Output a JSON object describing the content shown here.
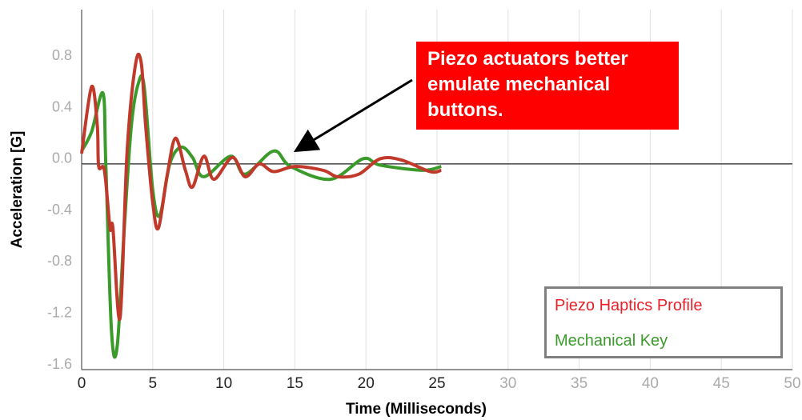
{
  "chart_data": {
    "type": "line",
    "annotation": "Piezo actuators better emulate mechanical buttons.",
    "xlabel": "Time (Milliseconds)",
    "ylabel": "Acceleration [G]",
    "xlim": [
      0,
      50
    ],
    "xticks": [
      0,
      5,
      10,
      15,
      20,
      25,
      30,
      35,
      40,
      45,
      50
    ],
    "ylim": [
      -1.6,
      1.2
    ],
    "yticks": [
      -1.6,
      -1.2,
      -0.8,
      -0.4,
      {
        "value": 0,
        "label": "0.0"
      },
      0.4,
      0.8
    ],
    "grid": true,
    "legend": "lower right",
    "series": [
      {
        "name": "Piezo Haptics Profile",
        "color": "#c0392b",
        "x": [
          0,
          0.7,
          1.1,
          1.2,
          1.6,
          2,
          2.2,
          2.7,
          3.2,
          3.8,
          4.2,
          4.5,
          5,
          5.4,
          6,
          6.6,
          7.3,
          7.8,
          8.6,
          9.3,
          10.6,
          11.5,
          12.5,
          13.5,
          15,
          17,
          18,
          19.5,
          21,
          22.5,
          24.5,
          25.3
        ],
        "values": [
          0.08,
          0.6,
          0.3,
          -0.02,
          -0.05,
          -0.5,
          -0.5,
          -1.2,
          0.1,
          0.78,
          0.78,
          0.3,
          -0.3,
          -0.5,
          -0.1,
          0.2,
          -0.05,
          -0.18,
          0.06,
          -0.12,
          0.05,
          -0.1,
          0.0,
          -0.06,
          -0.02,
          -0.05,
          -0.1,
          -0.08,
          0.04,
          0.03,
          -0.06,
          -0.05
        ]
      },
      {
        "name": "Mechanical Key",
        "color": "#3a9a2a",
        "x": [
          0,
          0.7,
          1.5,
          1.7,
          2.1,
          2.5,
          3,
          3.5,
          4,
          4.4,
          5,
          5.5,
          6.2,
          7,
          7.8,
          8.6,
          10.5,
          11.5,
          13.5,
          14.7,
          17.5,
          19.8,
          21,
          24,
          25.3
        ],
        "values": [
          0.1,
          0.25,
          0.55,
          0.0,
          -1.3,
          -1.42,
          -0.5,
          0.3,
          0.63,
          0.6,
          -0.2,
          -0.4,
          0.0,
          0.13,
          0.05,
          -0.1,
          0.06,
          -0.08,
          0.1,
          -0.02,
          -0.12,
          0.04,
          -0.01,
          -0.05,
          -0.02
        ]
      }
    ]
  }
}
